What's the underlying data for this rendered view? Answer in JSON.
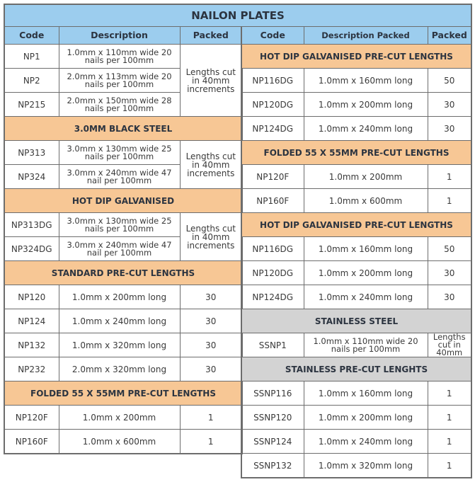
{
  "title": "NAILON PLATES",
  "colors": {
    "header_blue": "#9ccdee",
    "section_orange": "#f7c795",
    "section_gray": "#d3d3d3"
  },
  "left": {
    "headers": [
      "Code",
      "Description",
      "Packed"
    ],
    "sections": [
      {
        "title": "",
        "packed_merged": "Lengths cut in 40mm increments",
        "rows": [
          {
            "code": "NP1",
            "desc": "1.0mm x 110mm wide 20 nails per 100mm"
          },
          {
            "code": "NP2",
            "desc": "2.0mm x 113mm wide 20 nails per 100mm"
          },
          {
            "code": "NP215",
            "desc": "2.0mm x 150mm wide 28 nails per 100mm"
          }
        ]
      },
      {
        "title": "3.0MM BLACK STEEL",
        "packed_merged": "Lengths cut in 40mm increments",
        "rows": [
          {
            "code": "NP313",
            "desc": "3.0mm x 130mm wide 25 nails per 100mm"
          },
          {
            "code": "NP324",
            "desc": "3.0mm x 240mm wide 47 nail per 100mm"
          }
        ]
      },
      {
        "title": "HOT DIP GALVANISED",
        "packed_merged": "Lengths cut in 40mm increments",
        "rows": [
          {
            "code": "NP313DG",
            "desc": "3.0mm x 130mm wide 25 nails per 100mm"
          },
          {
            "code": "NP324DG",
            "desc": "3.0mm x 240mm wide 47 nail per 100mm"
          }
        ]
      },
      {
        "title": "STANDARD PRE-CUT LENGTHS",
        "rows": [
          {
            "code": "NP120",
            "desc": "1.0mm x 200mm long",
            "packed": "30"
          },
          {
            "code": "NP124",
            "desc": "1.0mm x 240mm long",
            "packed": "30"
          },
          {
            "code": "NP132",
            "desc": "1.0mm x 320mm long",
            "packed": "30"
          },
          {
            "code": "NP232",
            "desc": "2.0mm x 320mm long",
            "packed": "30"
          }
        ]
      },
      {
        "title": "FOLDED 55 X 55MM PRE-CUT LENGTHS",
        "rows": [
          {
            "code": "NP120F",
            "desc": "1.0mm x 200mm",
            "packed": "1"
          },
          {
            "code": "NP160F",
            "desc": "1.0mm x 600mm",
            "packed": "1"
          }
        ]
      }
    ]
  },
  "right": {
    "headers": [
      "Code",
      "Description Packed",
      "Packed"
    ],
    "sections": [
      {
        "title": "HOT DIP GALVANISED PRE-CUT LENGTHS",
        "rows": [
          {
            "code": "NP116DG",
            "desc": "1.0mm x 160mm long",
            "packed": "50"
          },
          {
            "code": "NP120DG",
            "desc": "1.0mm x 200mm long",
            "packed": "30"
          },
          {
            "code": "NP124DG",
            "desc": "1.0mm x 240mm long",
            "packed": "30"
          }
        ]
      },
      {
        "title": "FOLDED 55 X 55MM PRE-CUT LENGTHS",
        "rows": [
          {
            "code": "NP120F",
            "desc": "1.0mm x 200mm",
            "packed": "1"
          },
          {
            "code": "NP160F",
            "desc": "1.0mm x 600mm",
            "packed": "1"
          }
        ]
      },
      {
        "title": "HOT DIP GALVANISED PRE-CUT LENGTHS",
        "rows": [
          {
            "code": "NP116DG",
            "desc": "1.0mm x 160mm long",
            "packed": "50"
          },
          {
            "code": "NP120DG",
            "desc": "1.0mm x 200mm long",
            "packed": "30"
          },
          {
            "code": "NP124DG",
            "desc": "1.0mm x 240mm long",
            "packed": "30"
          }
        ]
      },
      {
        "title": "STAINLESS STEEL",
        "gray": true,
        "rows": [
          {
            "code": "SSNP1",
            "desc": "1.0mm x 110mm wide 20 nails per 100mm",
            "packed": "Lengths cut in 40mm"
          }
        ]
      },
      {
        "title": "STAINLESS PRE-CUT LENGHTS",
        "gray": true,
        "rows": [
          {
            "code": "SSNP116",
            "desc": "1.0mm x 160mm long",
            "packed": "1"
          },
          {
            "code": "SSNP120",
            "desc": "1.0mm x 200mm long",
            "packed": "1"
          },
          {
            "code": "SSNP124",
            "desc": "1.0mm x 240mm long",
            "packed": "1"
          },
          {
            "code": "SSNP132",
            "desc": "1.0mm x 320mm long",
            "packed": "1"
          }
        ]
      }
    ]
  }
}
